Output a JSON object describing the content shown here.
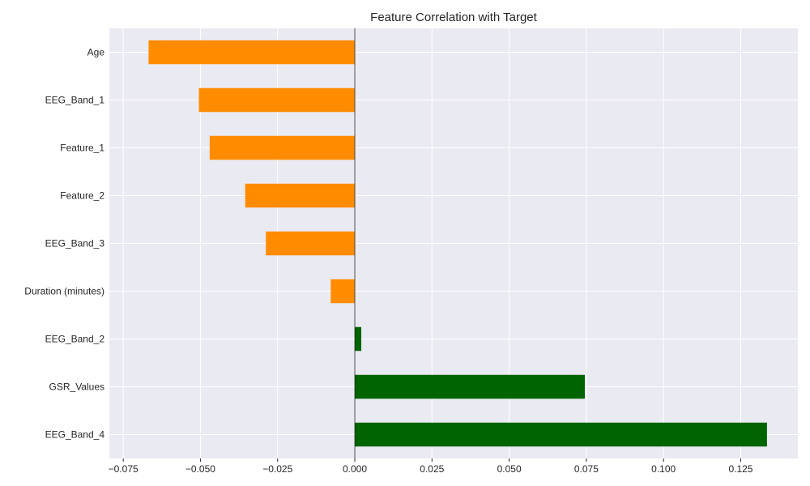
{
  "chart_data": {
    "type": "bar",
    "orientation": "horizontal",
    "title": "Feature Correlation with Target",
    "xlabel": "",
    "ylabel": "",
    "categories": [
      "Age",
      "EEG_Band_1",
      "Feature_1",
      "Feature_2",
      "EEG_Band_3",
      "Duration (minutes)",
      "EEG_Band_2",
      "GSR_Values",
      "EEG_Band_4"
    ],
    "values": [
      -0.0668,
      -0.0505,
      -0.047,
      -0.0355,
      -0.0288,
      -0.0078,
      0.0021,
      0.0745,
      0.1335
    ],
    "xlim": [
      -0.0795,
      0.1435
    ],
    "xticks": [
      -0.075,
      -0.05,
      -0.025,
      0.0,
      0.025,
      0.05,
      0.075,
      0.1,
      0.125
    ],
    "xtick_labels": [
      "−0.075",
      "−0.050",
      "−0.025",
      "0.000",
      "0.025",
      "0.050",
      "0.075",
      "0.100",
      "0.125"
    ],
    "grid": true,
    "colors": {
      "negative": "#ff8c00",
      "positive": "#006400",
      "background": "#eaeaf2",
      "grid": "#ffffff"
    }
  }
}
